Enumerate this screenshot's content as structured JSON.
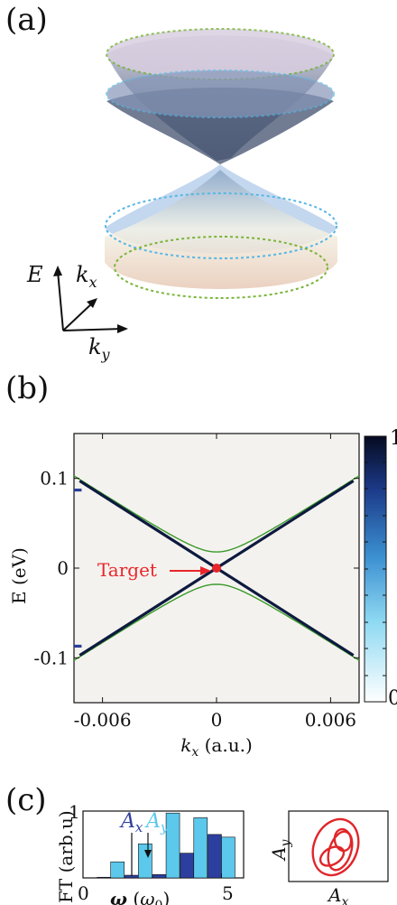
{
  "panels": {
    "a": "(a)",
    "b": "(b)",
    "c": "(c)"
  },
  "panel_a": {
    "axes": {
      "e": "E",
      "kx_base": "k",
      "kx_sub": "x",
      "ky_base": "k",
      "ky_sub": "y"
    }
  },
  "colors": {
    "dirac": "#0d1a3f",
    "green": "#3a9a2a",
    "target": "#e8262a",
    "light_blue": "#5bc8ec",
    "dark_blue": "#2d3f9e",
    "orbit": "#e0262a"
  },
  "chart_data": [
    {
      "type": "heatmap",
      "xlabel_base": "k",
      "xlabel_sub": "x",
      "xlabel_unit": " (a.u.)",
      "ylabel": "E (eV)",
      "xlim": [
        -0.0075,
        0.0075
      ],
      "ylim": [
        -0.15,
        0.15
      ],
      "xticks": [
        -0.006,
        0,
        0.006
      ],
      "xtick_labels": [
        "-0.006",
        "0",
        "0.006"
      ],
      "yticks": [
        0.1,
        0,
        -0.1
      ],
      "ytick_labels": [
        "0.1",
        "0",
        "-0.1"
      ],
      "colorbar": {
        "min": 0,
        "max": 1,
        "min_label": "0",
        "max_label": "1"
      },
      "annotation": {
        "text": "Target",
        "x": 0,
        "y": 0
      },
      "dirac_slope_eV_per_au": 13.5,
      "gapped_band_edge_eV": 0.018,
      "gapped_band_edge_at_kmax_eV": 0.103
    },
    {
      "type": "bar",
      "ylabel": "FT (arb.u)",
      "xlabel_base": "ω",
      "xlabel_unit_base": "ω",
      "xlabel_unit_sub": "0",
      "xlim": [
        0,
        5.8
      ],
      "ylim": [
        0,
        1
      ],
      "xtick_labels": [
        "0",
        "5"
      ],
      "ytick_labels": [
        "1"
      ],
      "legend": [
        {
          "label_base": "A",
          "label_sub": "x",
          "color": "#2d3f9e"
        },
        {
          "label_base": "A",
          "label_sub": "y",
          "color": "#5bc8ec"
        }
      ],
      "categories": [
        1,
        2,
        3,
        4,
        5
      ],
      "series": [
        {
          "name": "Ax",
          "values": [
            0.01,
            0.04,
            0.05,
            0.37,
            0.65
          ]
        },
        {
          "name": "Ay",
          "values": [
            0.24,
            0.51,
            0.97,
            0.9,
            0.61
          ]
        }
      ]
    },
    {
      "type": "scatter",
      "xlabel_base": "A",
      "xlabel_sub": "x",
      "ylabel_base": "A",
      "ylabel_sub": "y"
    }
  ]
}
